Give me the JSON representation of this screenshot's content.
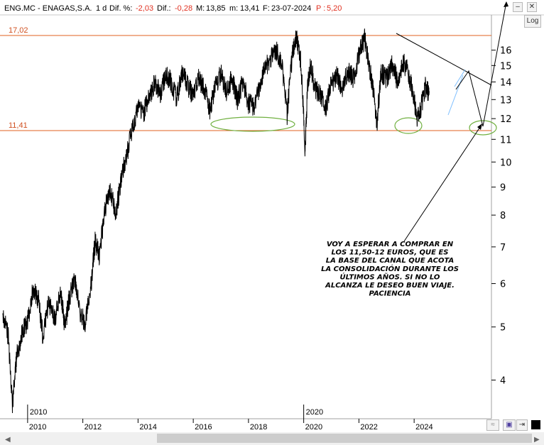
{
  "header": {
    "symbol": "ENG.MC - ENAGAS,S.A.",
    "period": "1 d",
    "dif_pct_label": "Dif. %:",
    "dif_pct_value": "-2,03",
    "dif_label": "Dif.:",
    "dif_value": "-0,28",
    "max_label": "M:",
    "max_value": "13,85",
    "min_label": "m:",
    "min_value": "13,41",
    "date_label": "F:",
    "date_value": "23-07-2024",
    "price_label": "P :",
    "price_value": "5,20"
  },
  "controls": {
    "log_label": "Log",
    "minimize_icon": "minimize-icon",
    "close_icon": "close-icon",
    "chart_type_icon": "chart-type-icon",
    "save_icon": "save-icon",
    "pin_icon": "pin-icon",
    "fill_icon": "fill-icon"
  },
  "chart_data": {
    "type": "line",
    "y_scale": "log",
    "ylim": [
      3.4,
      18.5
    ],
    "y_ticks": [
      4,
      5,
      6,
      7,
      8,
      9,
      10,
      11,
      12,
      13,
      14,
      15,
      16
    ],
    "x_range": [
      2009.0,
      2026.8
    ],
    "x_ticks": [
      "2010",
      "2012",
      "2014",
      "2016",
      "2018",
      "2020",
      "2022",
      "2024"
    ],
    "year_markers": [
      "2010",
      "2020"
    ],
    "grid": false,
    "colors": {
      "price": "#000000",
      "levels": "#e06020",
      "ellipses": "#70b040",
      "channel": "#80c0ff",
      "trend": "#000000"
    },
    "horizontal_levels": [
      {
        "label": "17,02",
        "value": 17.02
      },
      {
        "label": "11,41",
        "value": 11.41
      }
    ],
    "price_series": {
      "x": [
        2009.1,
        2009.3,
        2009.45,
        2009.6,
        2009.8,
        2010.0,
        2010.2,
        2010.4,
        2010.55,
        2010.75,
        2011.0,
        2011.2,
        2011.35,
        2011.5,
        2011.7,
        2011.9,
        2012.1,
        2012.3,
        2012.45,
        2012.6,
        2012.8,
        2013.0,
        2013.2,
        2013.4,
        2013.6,
        2013.8,
        2014.0,
        2014.2,
        2014.4,
        2014.6,
        2014.8,
        2015.0,
        2015.2,
        2015.4,
        2015.6,
        2015.8,
        2016.0,
        2016.2,
        2016.4,
        2016.6,
        2016.8,
        2017.0,
        2017.2,
        2017.4,
        2017.6,
        2017.8,
        2018.0,
        2018.2,
        2018.4,
        2018.6,
        2018.8,
        2019.0,
        2019.2,
        2019.4,
        2019.6,
        2019.75,
        2019.9,
        2020.05,
        2020.15,
        2020.25,
        2020.4,
        2020.6,
        2020.8,
        2021.0,
        2021.2,
        2021.4,
        2021.6,
        2021.8,
        2022.0,
        2022.2,
        2022.35,
        2022.5,
        2022.65,
        2022.8,
        2023.0,
        2023.2,
        2023.4,
        2023.6,
        2023.8,
        2023.95,
        2024.1,
        2024.25,
        2024.4,
        2024.55
      ],
      "values": [
        5.3,
        4.8,
        3.6,
        4.4,
        4.9,
        5.1,
        5.9,
        5.6,
        4.8,
        5.5,
        5.2,
        5.8,
        5.0,
        5.6,
        6.2,
        5.3,
        5.1,
        6.0,
        7.2,
        6.7,
        8.2,
        8.9,
        8.0,
        9.4,
        10.3,
        11.6,
        12.6,
        12.3,
        13.1,
        14.0,
        13.3,
        14.4,
        14.0,
        13.0,
        14.6,
        13.8,
        13.2,
        14.2,
        13.6,
        12.4,
        13.7,
        14.5,
        13.5,
        14.2,
        13.0,
        14.0,
        12.8,
        12.6,
        13.8,
        14.8,
        15.4,
        16.0,
        15.1,
        12.2,
        15.9,
        16.9,
        15.2,
        10.3,
        14.0,
        15.0,
        13.7,
        13.3,
        12.5,
        13.9,
        14.4,
        13.6,
        14.7,
        14.2,
        15.6,
        16.9,
        15.1,
        13.8,
        11.6,
        14.6,
        14.2,
        15.1,
        14.0,
        15.3,
        14.5,
        13.4,
        12.1,
        12.6,
        13.7,
        13.4
      ]
    },
    "annotation": "VOY A ESPERAR A COMPRAR EN LOS 11,50-12 EUROS, QUE ES LA BASE DEL CANAL QUE ACOTA LA CONSOLIDACIÓN DURANTE LOS ÚLTIMOS AÑOS. SI NO LO ALCANZA LE DESEO BUEN VIAJE. PACIENCIA"
  }
}
